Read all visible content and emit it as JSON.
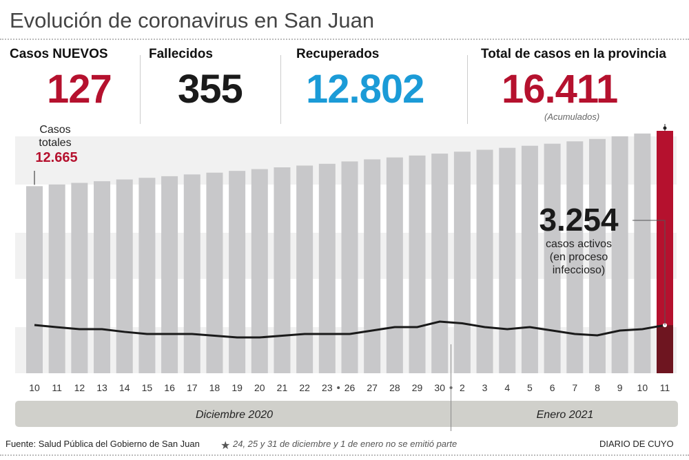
{
  "title": "Evolución de coronavirus en San Juan",
  "stats": [
    {
      "label": "Casos NUEVOS",
      "value": "127",
      "color": "#b5112e"
    },
    {
      "label": "Fallecidos",
      "value": "355",
      "color": "#1a1a1a"
    },
    {
      "label": "Recuperados",
      "value": "12.802",
      "color": "#1b9bd7"
    },
    {
      "label": "Total de casos en la provincia",
      "value": "16.411",
      "color": "#b5112e",
      "note": "(Acumulados)"
    }
  ],
  "annotations": {
    "first_label_1": "Casos",
    "first_label_2": "totales",
    "first_value": "12.665",
    "active_value": "3.254",
    "active_1": "casos activos",
    "active_2": "(en proceso",
    "active_3": "infeccioso)"
  },
  "months": [
    "Diciembre 2020",
    "Enero 2021"
  ],
  "footer": {
    "source": "Fuente: Salud Pública del Gobierno de San Juan",
    "note_star": "★",
    "note": "24, 25 y 31 de diciembre y 1 de enero no se emitió parte",
    "brand": "DIARIO DE CUYO"
  },
  "chart_data": {
    "type": "bar",
    "categories": [
      "10",
      "11",
      "12",
      "13",
      "14",
      "15",
      "16",
      "17",
      "18",
      "19",
      "20",
      "21",
      "22",
      "23",
      "26",
      "27",
      "28",
      "29",
      "30",
      "2",
      "3",
      "4",
      "5",
      "6",
      "7",
      "8",
      "9",
      "10",
      "11"
    ],
    "gap_markers_after": [
      "23",
      "30"
    ],
    "series": [
      {
        "name": "Casos totales",
        "type": "bar",
        "values": [
          12665,
          12780,
          12890,
          13000,
          13120,
          13230,
          13340,
          13460,
          13580,
          13700,
          13820,
          13940,
          14060,
          14180,
          14340,
          14480,
          14610,
          14740,
          14870,
          15000,
          15130,
          15260,
          15400,
          15540,
          15700,
          15860,
          16040,
          16230,
          16411
        ],
        "color": "#c8c8ca",
        "highlight_color": "#b5112e"
      },
      {
        "name": "casos activos",
        "type": "line",
        "values": [
          3263,
          3120,
          2984,
          2984,
          2800,
          2657,
          2657,
          2657,
          2540,
          2424,
          2424,
          2540,
          2657,
          2657,
          2657,
          2890,
          3124,
          3124,
          3497,
          3380,
          3124,
          2984,
          3124,
          2890,
          2657,
          2564,
          2890,
          2984,
          3254
        ],
        "color": "#1a1a1a",
        "highlight_color": "#6e1520"
      }
    ],
    "ylim": [
      0,
      16411
    ],
    "grid": false
  }
}
